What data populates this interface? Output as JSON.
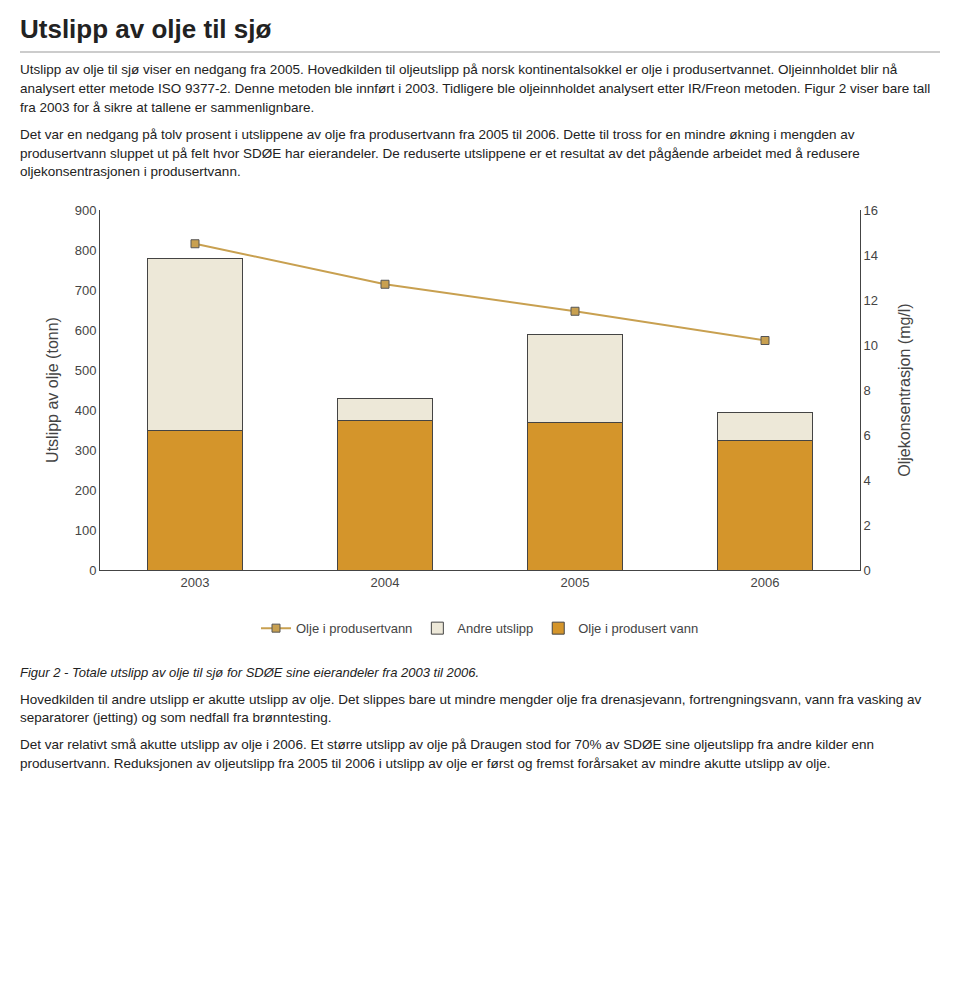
{
  "page_title": "Utslipp av olje til sjø",
  "paragraphs_before": [
    "Utslipp av olje til sjø viser en nedgang fra 2005. Hovedkilden til oljeutslipp på norsk kontinentalsokkel er olje i produsertvannet. Oljeinnholdet blir nå analysert etter metode ISO 9377-2. Denne metoden ble innført i 2003. Tidligere ble oljeinnholdet analysert etter IR/Freon metoden. Figur 2 viser bare tall fra 2003 for å sikre at tallene er sammenlignbare.",
    "Det var en nedgang på tolv prosent i utslippene av olje fra produsertvann fra 2005 til 2006. Dette til tross for en mindre økning i mengden av produsertvann sluppet ut på felt hvor SDØE har eierandeler. De reduserte utslippene er et resultat av det pågående arbeidet med å redusere oljekonsentrasjonen i produsertvann."
  ],
  "caption": "Figur 2 - Totale utslipp av olje til sjø for SDØE sine eierandeler fra 2003 til 2006.",
  "paragraphs_after": [
    "Hovedkilden til andre utslipp er akutte utslipp av olje. Det slippes bare ut mindre mengder olje fra drenasjevann, fortrengningsvann, vann fra vasking av separatorer (jetting) og som nedfall fra brønntesting.",
    "Det var relativt små akutte utslipp av olje i 2006. Et større utslipp av olje på Draugen stod for 70% av SDØE sine oljeutslipp fra andre kilder enn produsertvann. Reduksjonen av oljeutslipp fra 2005 til 2006 i utslipp av olje er først og fremst forårsaket av mindre akutte utslipp av olje."
  ],
  "chart_data": {
    "type": "bar",
    "stacked": true,
    "categories": [
      "2003",
      "2004",
      "2005",
      "2006"
    ],
    "series": [
      {
        "name": "Olje i produsert vann",
        "color": "#D4952B",
        "values": [
          350,
          375,
          370,
          325
        ]
      },
      {
        "name": "Andre utslipp",
        "color": "#EDE8D8",
        "values": [
          430,
          55,
          220,
          70
        ]
      },
      {
        "name": "Olje i produsertvann",
        "type": "line",
        "axis": "y2",
        "color": "#C8A050",
        "marker": "square",
        "values": [
          14.5,
          12.7,
          11.5,
          10.2
        ]
      }
    ],
    "ylabel": "Utslipp av olje (tonn)",
    "y2label": "Oljekonsentrasjon (mg/l)",
    "ylim": [
      0,
      900
    ],
    "yticks": [
      0,
      100,
      200,
      300,
      400,
      500,
      600,
      700,
      800,
      900
    ],
    "y2lim": [
      0,
      16
    ],
    "y2ticks": [
      0,
      2,
      4,
      6,
      8,
      10,
      12,
      14,
      16
    ],
    "grid": false,
    "legend": "bottom"
  }
}
